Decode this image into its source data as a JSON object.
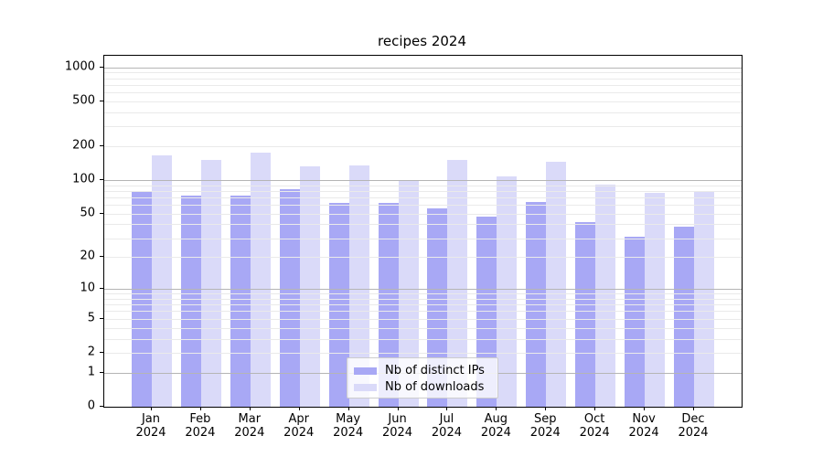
{
  "title": "recipes 2024",
  "year_label": "2024",
  "chart_data": {
    "type": "bar",
    "title": "recipes 2024",
    "categories": [
      "Jan 2024",
      "Feb 2024",
      "Mar 2024",
      "Apr 2024",
      "May 2024",
      "Jun 2024",
      "Jul 2024",
      "Aug 2024",
      "Sep 2024",
      "Oct 2024",
      "Nov 2024",
      "Dec 2024"
    ],
    "months": [
      "Jan",
      "Feb",
      "Mar",
      "Apr",
      "May",
      "Jun",
      "Jul",
      "Aug",
      "Sep",
      "Oct",
      "Nov",
      "Dec"
    ],
    "year": "2024",
    "series": [
      {
        "name": "Nb of distinct IPs",
        "color": "#a8a8f5",
        "values": [
          80,
          72,
          72,
          83,
          63,
          63,
          56,
          47,
          64,
          42,
          31,
          38
        ]
      },
      {
        "name": "Nb of downloads",
        "color": "#dadaf9",
        "values": [
          166,
          152,
          177,
          133,
          135,
          100,
          152,
          107,
          145,
          91,
          77,
          80
        ]
      }
    ],
    "xlabel": "",
    "ylabel": "",
    "yscale": "log1p",
    "ylim": [
      0,
      1270
    ],
    "yticks": [
      0,
      1,
      2,
      5,
      10,
      20,
      50,
      100,
      200,
      500,
      1000
    ],
    "grid": {
      "on": true,
      "major_ticks": [
        1,
        10,
        100,
        1000
      ],
      "minor_decades": [
        1,
        10,
        100
      ],
      "major_color": "#b5b5b5",
      "minor_color": "#eaeaea"
    },
    "legend": {
      "position": "lower center",
      "labels": [
        "Nb of distinct IPs",
        "Nb of downloads"
      ]
    }
  }
}
